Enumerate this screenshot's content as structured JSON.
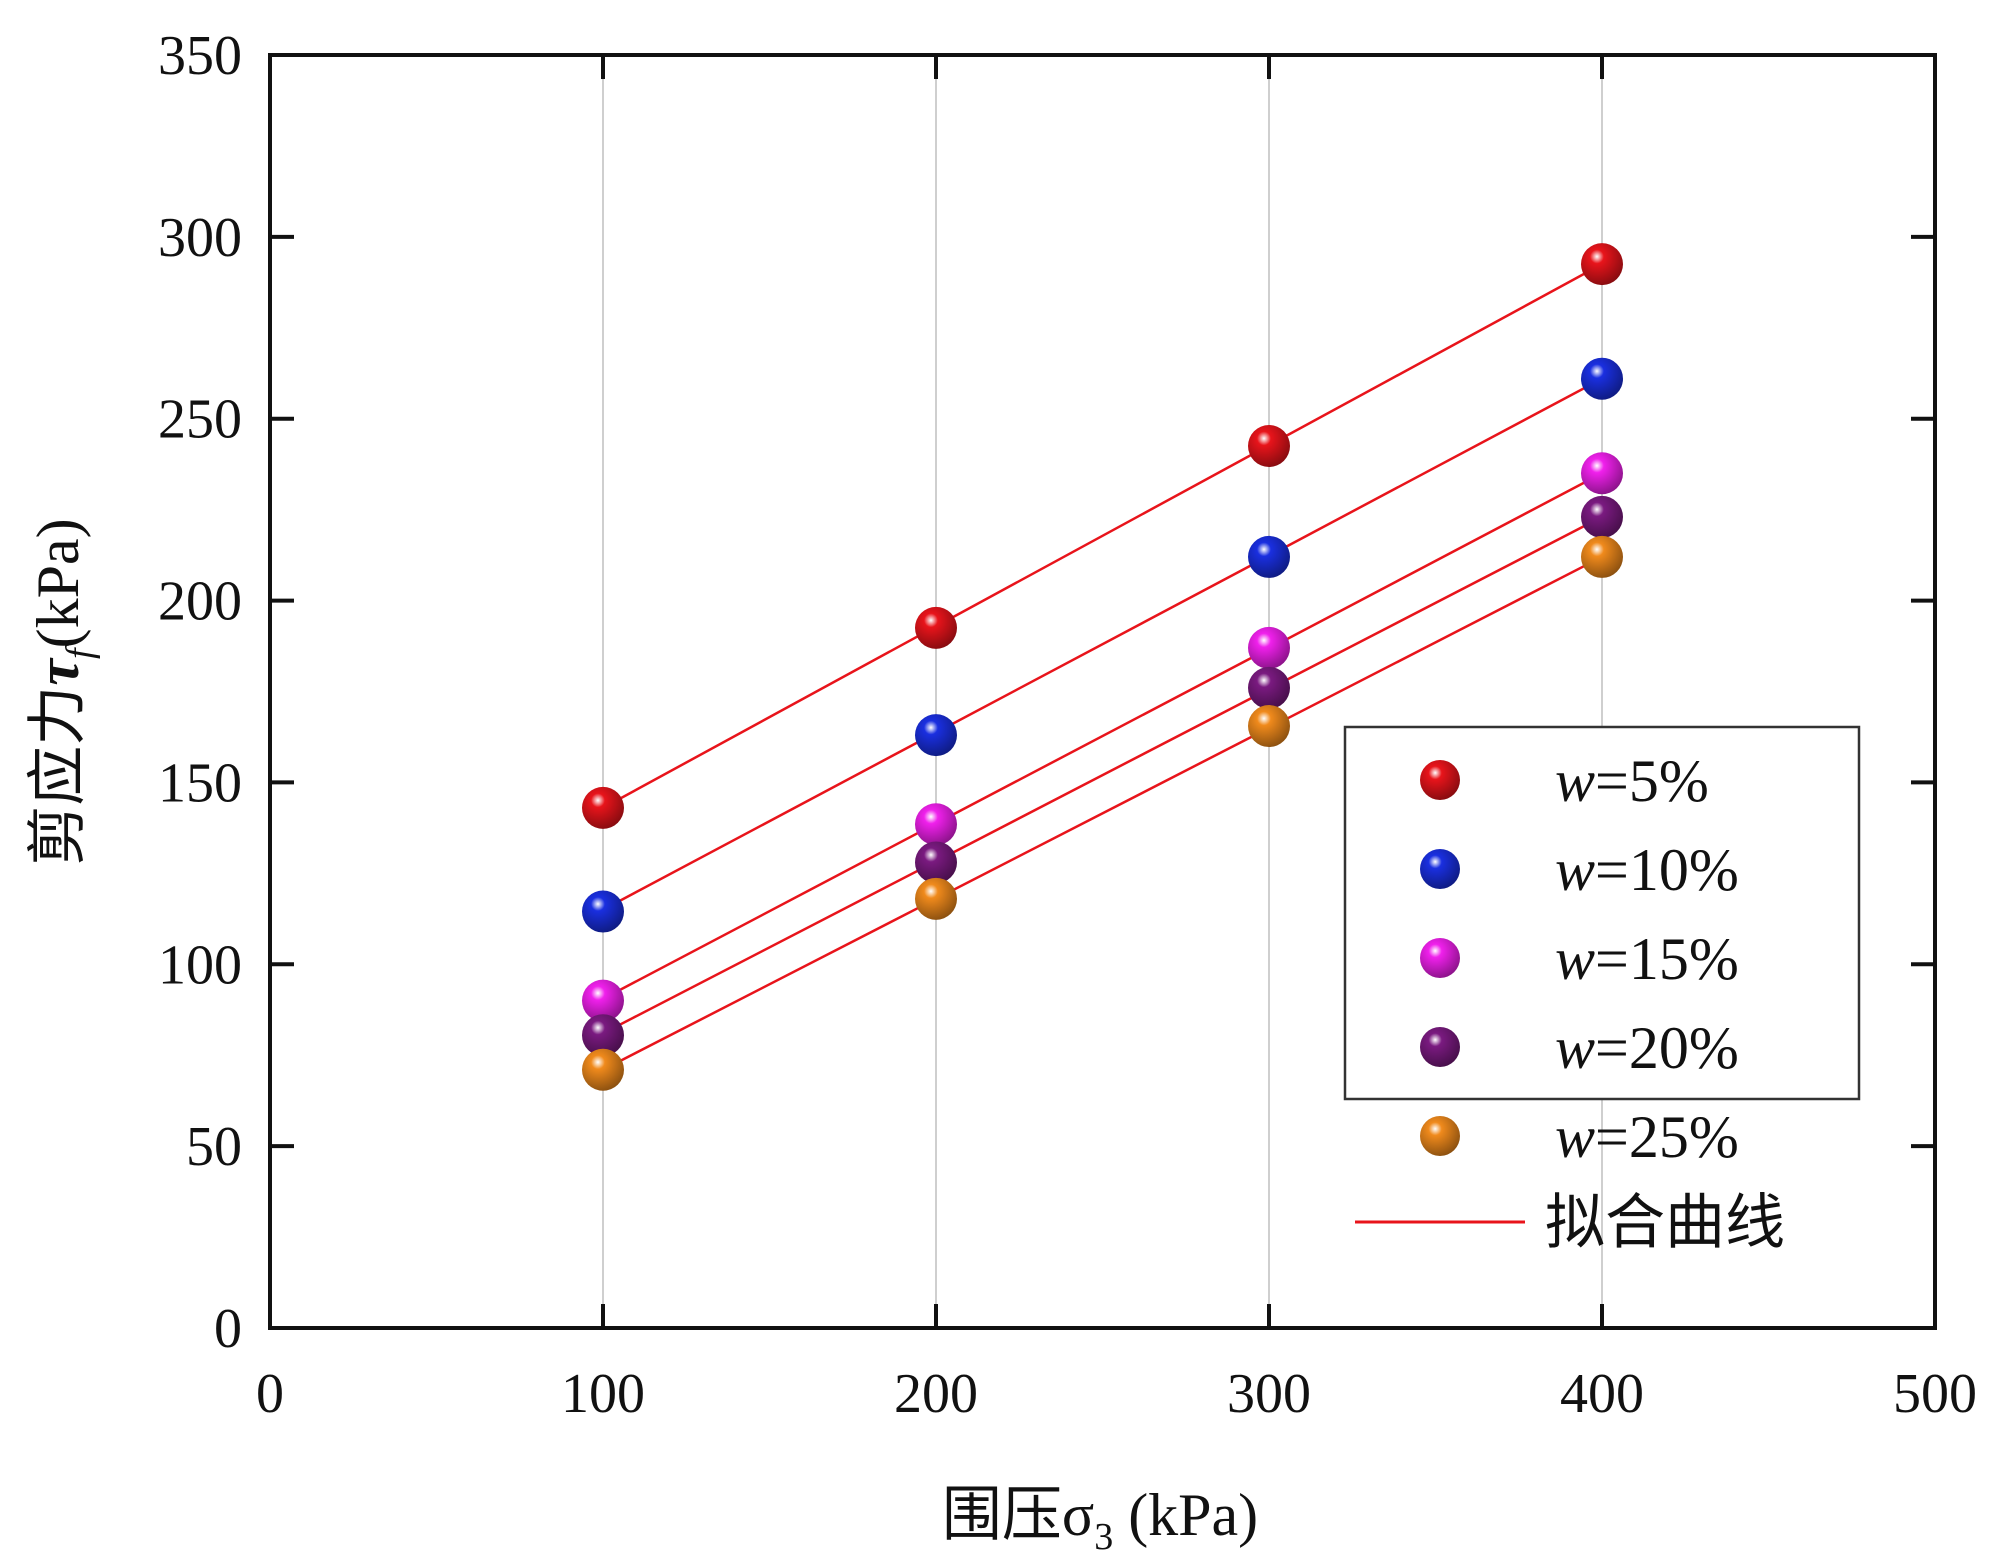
{
  "chart_data": {
    "type": "scatter",
    "title": "",
    "xlabel": {
      "main": "围压",
      "symbol": "σ",
      "subscript": "3",
      "unit": " (kPa)"
    },
    "ylabel": {
      "main": "剪应力",
      "symbol": "τ",
      "subscript": "f",
      "unit": "(kPa)"
    },
    "xlim": [
      0,
      500
    ],
    "ylim": [
      0,
      350
    ],
    "xticks": [
      0,
      100,
      200,
      300,
      400,
      500
    ],
    "yticks": [
      0,
      50,
      100,
      150,
      200,
      250,
      300,
      350
    ],
    "grid": "vertical",
    "legend_position": "bottom-right",
    "x": [
      100,
      200,
      300,
      400
    ],
    "series": [
      {
        "name": "w=5%",
        "prefix": "w",
        "suffix": "=5%",
        "color": "#e8141b",
        "values": [
          143,
          192.5,
          242.5,
          292.5
        ],
        "fit": [
          143,
          192.9,
          242.7,
          292.5
        ]
      },
      {
        "name": "w=10%",
        "prefix": "w",
        "suffix": "=10%",
        "color": "#1a2fe0",
        "values": [
          114.5,
          163,
          212,
          261
        ],
        "fit": [
          115,
          163.7,
          212.3,
          261
        ]
      },
      {
        "name": "w=15%",
        "prefix": "w",
        "suffix": "=15%",
        "color": "#f020ec",
        "values": [
          90,
          138.5,
          187,
          235
        ],
        "fit": [
          90.5,
          138.7,
          186.8,
          235
        ]
      },
      {
        "name": "w=20%",
        "prefix": "w",
        "suffix": "=20%",
        "color": "#7a1a80",
        "values": [
          80.5,
          128,
          176,
          223
        ],
        "fit": [
          81,
          128.3,
          175.7,
          223
        ]
      },
      {
        "name": "w=25%",
        "prefix": "w",
        "suffix": "=25%",
        "color": "#f08a1c",
        "values": [
          71,
          118,
          165.5,
          212
        ],
        "fit": [
          71,
          118,
          165,
          212
        ]
      }
    ],
    "fit_line": {
      "label": "拟合曲线",
      "color": "#e8141b"
    }
  }
}
